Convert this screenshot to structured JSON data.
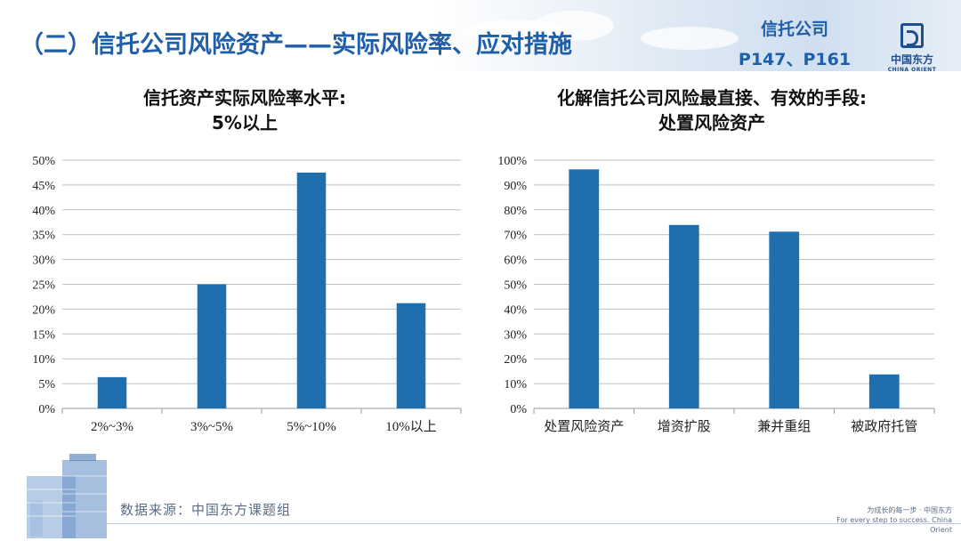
{
  "header": {
    "title": "（二）信托公司风险资产——实际风险率、应对措施",
    "source_ref_line1": "信托公司",
    "source_ref_line2": "P147、P161"
  },
  "logo": {
    "name_cn": "中国东方",
    "name_en": "CHINA ORIENT"
  },
  "left_chart_title": {
    "line1": "信托资产实际风险率水平:",
    "line2": "5%以上"
  },
  "right_chart_title": {
    "line1": "化解信托公司风险最直接、有效的手段:",
    "line2": "处置风险资产"
  },
  "footer": {
    "source_note": "数据来源：中国东方课题组",
    "slogan_cn": "为成长的每一步 · 中国东方",
    "slogan_en": "For every step to success. China Orient"
  },
  "colors": {
    "bar": "#1f6fae",
    "title": "#1f5ea8",
    "grid": "#bfbfbf"
  },
  "chart_data": [
    {
      "type": "bar",
      "title": "信托资产实际风险率水平: 5%以上",
      "categories": [
        "2%~3%",
        "3%~5%",
        "5%~10%",
        "10%以上"
      ],
      "values": [
        6.3,
        25.0,
        47.5,
        21.2
      ],
      "unit": "%",
      "ylim": [
        0,
        50
      ],
      "yticks": [
        "0%",
        "5%",
        "10%",
        "15%",
        "20%",
        "25%",
        "30%",
        "35%",
        "40%",
        "45%",
        "50%"
      ],
      "grid": true,
      "legend": "none"
    },
    {
      "type": "bar",
      "title": "化解信托公司风险最直接、有效的手段: 处置风险资产",
      "categories": [
        "处置风险资产",
        "增资扩股",
        "兼并重组",
        "被政府托管"
      ],
      "values": [
        96.3,
        73.9,
        71.2,
        13.7
      ],
      "unit": "%",
      "ylim": [
        0,
        100
      ],
      "yticks": [
        "0%",
        "10%",
        "20%",
        "30%",
        "40%",
        "50%",
        "60%",
        "70%",
        "80%",
        "90%",
        "100%"
      ],
      "grid": true,
      "legend": "none"
    }
  ]
}
